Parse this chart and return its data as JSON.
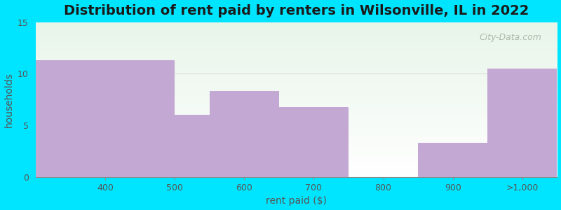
{
  "title": "Distribution of rent paid by renters in Wilsonville, IL in 2022",
  "categories": [
    "400",
    "500",
    "600",
    "700",
    "800",
    "900",
    ">1,000"
  ],
  "tick_positions": [
    400,
    500,
    600,
    700,
    800,
    900,
    1000
  ],
  "bar_lefts": [
    300,
    500,
    550,
    650,
    750,
    850,
    950
  ],
  "bar_rights": [
    500,
    550,
    650,
    750,
    850,
    950,
    1050
  ],
  "values": [
    11.3,
    6.0,
    8.3,
    6.8,
    0.0,
    3.3,
    10.5
  ],
  "bar_color": "#C4A8D4",
  "xlabel": "rent paid ($)",
  "ylabel": "households",
  "ylim": [
    0,
    15
  ],
  "yticks": [
    0,
    5,
    10,
    15
  ],
  "xlim": [
    300,
    1050
  ],
  "bg_outer": "#00E5FF",
  "bg_plot_top": "#E8F5E9",
  "bg_plot_bottom": "#FFFFFF",
  "title_fontsize": 14,
  "axis_label_fontsize": 10,
  "tick_fontsize": 9,
  "watermark_text": "City-Data.com",
  "gridline_y": 10,
  "gridline_color": "#dddddd"
}
